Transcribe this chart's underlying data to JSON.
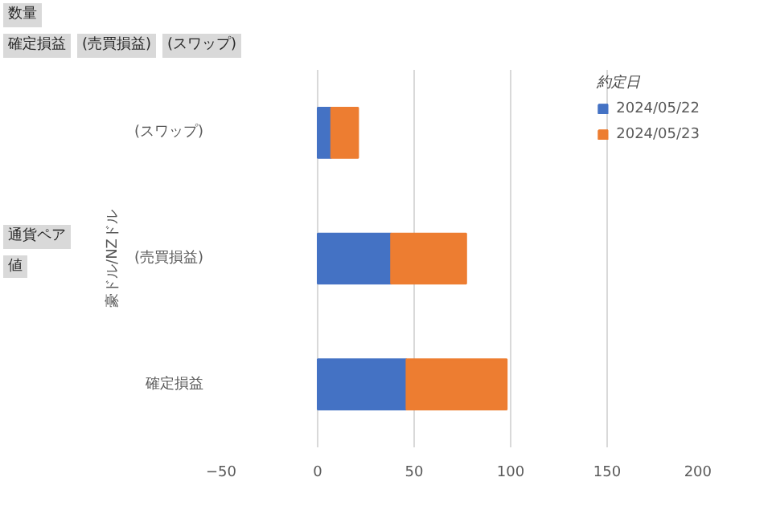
{
  "chart_data": {
    "type": "bar",
    "orientation": "horizontal",
    "stacked": true,
    "categories": [
      "(スワップ)",
      "(売買損益)",
      "確定損益"
    ],
    "series": [
      {
        "name": "2024/05/22",
        "color": "#4472c4",
        "values": [
          7,
          38,
          46
        ]
      },
      {
        "name": "2024/05/23",
        "color": "#ed7d31",
        "values": [
          14,
          39,
          52
        ]
      }
    ],
    "xlim": [
      -50,
      200
    ],
    "xticks": [
      -50,
      0,
      50,
      100,
      150,
      200
    ],
    "ylabel": "豪ドル/NZドル",
    "legend_title": "約定日",
    "legend": "top right",
    "grid": "x",
    "annotations": [
      "数量",
      "確定損益",
      "(売買損益)",
      "(スワップ)",
      "通貨ペア",
      "値"
    ]
  }
}
